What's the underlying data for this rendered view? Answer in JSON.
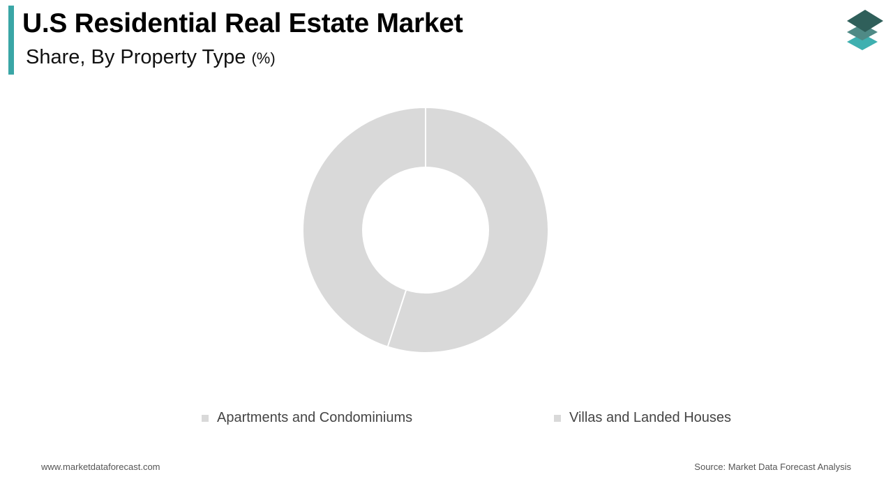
{
  "header": {
    "title": "U.S Residential Real Estate Market",
    "subtitle": "Share, By Property Type",
    "subtitle_unit": "(%)",
    "accent_color": "#3aa6a6"
  },
  "logo": {
    "icon": "layers-stack-icon",
    "colors": [
      "#2f5f5a",
      "#4f8a86",
      "#3fb0b0"
    ]
  },
  "chart_data": {
    "type": "pie",
    "donut": true,
    "categories": [
      "Apartments and Condominiums",
      "Villas and Landed Houses"
    ],
    "values": [
      55,
      45
    ],
    "colors": [
      "#d9d9d9",
      "#d9d9d9"
    ],
    "legend_placement": "bottom"
  },
  "footer": {
    "website": "www.marketdataforecast.com",
    "source": "Source: Market Data Forecast Analysis"
  }
}
